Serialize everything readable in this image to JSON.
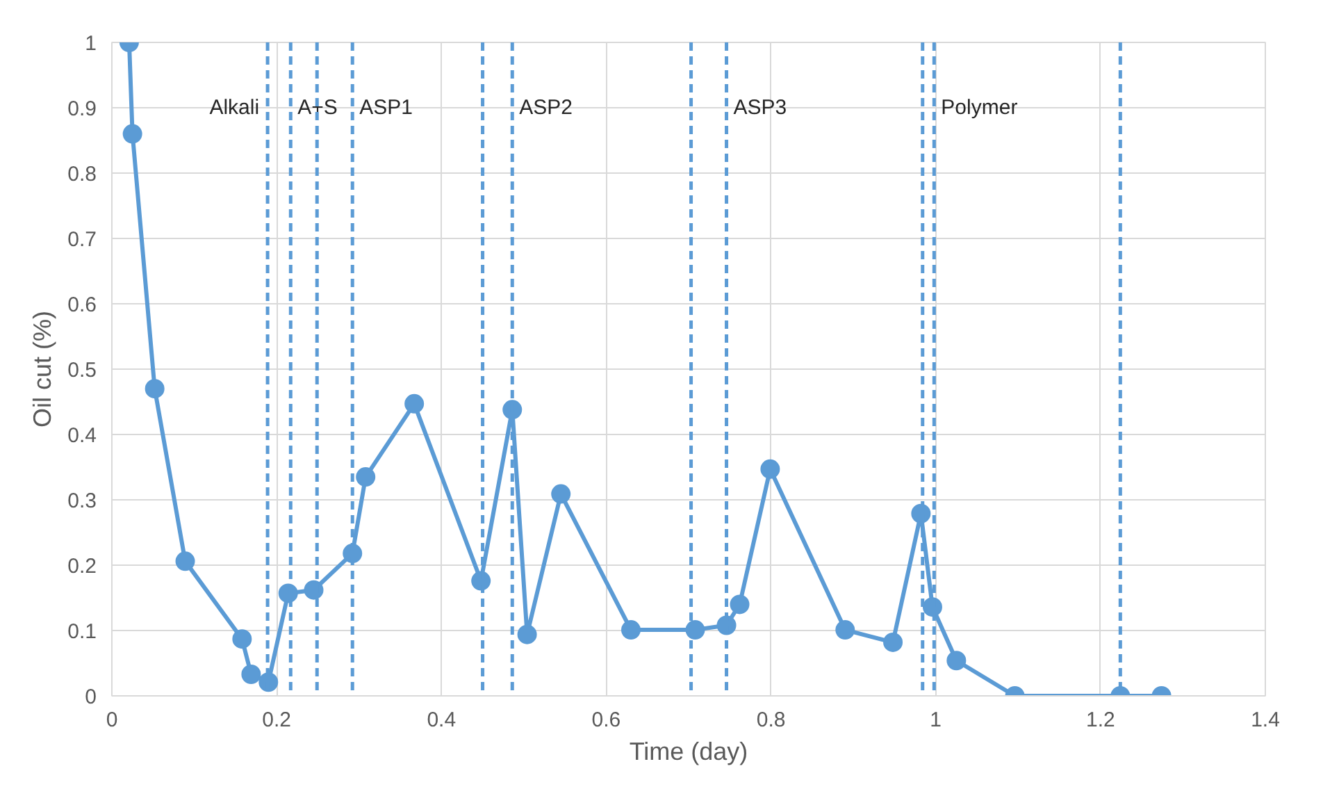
{
  "chart_data": {
    "type": "line",
    "xlabel": "Time (day)",
    "ylabel": "Oil cut (%)",
    "xlim": [
      0,
      1.4
    ],
    "ylim": [
      0,
      1
    ],
    "xticks": [
      0,
      0.2,
      0.4,
      0.6,
      0.8,
      1,
      1.2,
      1.4
    ],
    "yticks": [
      0,
      0.1,
      0.2,
      0.3,
      0.4,
      0.5,
      0.6,
      0.7,
      0.8,
      0.9,
      1
    ],
    "grid": true,
    "marker": "circle",
    "line_style": "solid",
    "x": [
      0.021,
      0.025,
      0.052,
      0.089,
      0.158,
      0.169,
      0.19,
      0.214,
      0.245,
      0.292,
      0.308,
      0.367,
      0.448,
      0.486,
      0.504,
      0.545,
      0.63,
      0.708,
      0.746,
      0.762,
      0.799,
      0.89,
      0.948,
      0.982,
      0.996,
      1.025,
      1.096,
      1.224,
      1.274
    ],
    "series": [
      {
        "color": "#5b9bd5",
        "values": [
          1.0,
          0.86,
          0.47,
          0.206,
          0.087,
          0.033,
          0.021,
          0.157,
          0.162,
          0.218,
          0.335,
          0.447,
          0.176,
          0.438,
          0.094,
          0.309,
          0.101,
          0.101,
          0.108,
          0.14,
          0.347,
          0.101,
          0.082,
          0.279,
          0.136,
          0.054,
          0,
          0,
          0
        ]
      }
    ],
    "ref_lines": [
      {
        "axis": "x",
        "value": 0.189,
        "color": "#5b9bd5",
        "line_style": "dashed",
        "label": "Alkali"
      },
      {
        "axis": "x",
        "value": 0.217,
        "color": "#5b9bd5",
        "line_style": "dashed",
        "label": "A+S"
      },
      {
        "axis": "x",
        "value": 0.249,
        "color": "#5b9bd5",
        "line_style": "dashed"
      },
      {
        "axis": "x",
        "value": 0.292,
        "color": "#5b9bd5",
        "line_style": "dashed",
        "label": "ASP1"
      },
      {
        "axis": "x",
        "value": 0.45,
        "color": "#5b9bd5",
        "line_style": "dashed"
      },
      {
        "axis": "x",
        "value": 0.486,
        "color": "#5b9bd5",
        "line_style": "dashed",
        "label": "ASP2"
      },
      {
        "axis": "x",
        "value": 0.703,
        "color": "#5b9bd5",
        "line_style": "dashed"
      },
      {
        "axis": "x",
        "value": 0.746,
        "color": "#5b9bd5",
        "line_style": "dashed",
        "label": "ASP3"
      },
      {
        "axis": "x",
        "value": 0.984,
        "color": "#5b9bd5",
        "line_style": "dashed"
      },
      {
        "axis": "x",
        "value": 0.998,
        "color": "#5b9bd5",
        "line_style": "dashed",
        "label": "Polymer"
      },
      {
        "axis": "x",
        "value": 1.224,
        "color": "#5b9bd5",
        "line_style": "dashed"
      }
    ]
  }
}
